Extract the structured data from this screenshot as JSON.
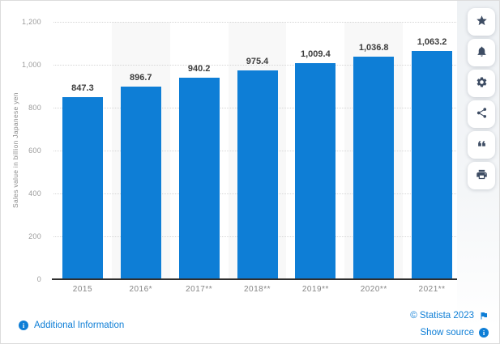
{
  "chart_data": {
    "type": "bar",
    "categories": [
      "2015",
      "2016*",
      "2017**",
      "2018**",
      "2019**",
      "2020**",
      "2021**"
    ],
    "values": [
      847.3,
      896.7,
      940.2,
      975.4,
      1009.4,
      1036.8,
      1063.2
    ],
    "value_labels": [
      "847.3",
      "896.7",
      "940.2",
      "975.4",
      "1,009.4",
      "1,036.8",
      "1,063.2"
    ],
    "title": "",
    "xlabel": "",
    "ylabel": "Sales value in billion Japanese yen",
    "ylim": [
      0,
      1200
    ],
    "yticks": [
      0,
      200,
      400,
      600,
      800,
      1000,
      1200
    ],
    "ytick_labels": [
      "0",
      "200",
      "400",
      "600",
      "800",
      "1,000",
      "1,200"
    ],
    "grid": true,
    "legend_position": "none",
    "bar_color": "#0e7ed6",
    "band_color": "#f8f8f8"
  },
  "sidebar": {
    "buttons": [
      {
        "icon": "star-icon"
      },
      {
        "icon": "bell-icon"
      },
      {
        "icon": "gear-icon"
      },
      {
        "icon": "share-icon"
      },
      {
        "icon": "quote-icon"
      },
      {
        "icon": "print-icon"
      }
    ],
    "icon_color": "#3d4c63"
  },
  "footer": {
    "additional_information": "Additional Information",
    "copyright": "© Statista 2023",
    "show_source": "Show source"
  },
  "colors": {
    "accent_blue": "#0e7ed6"
  }
}
